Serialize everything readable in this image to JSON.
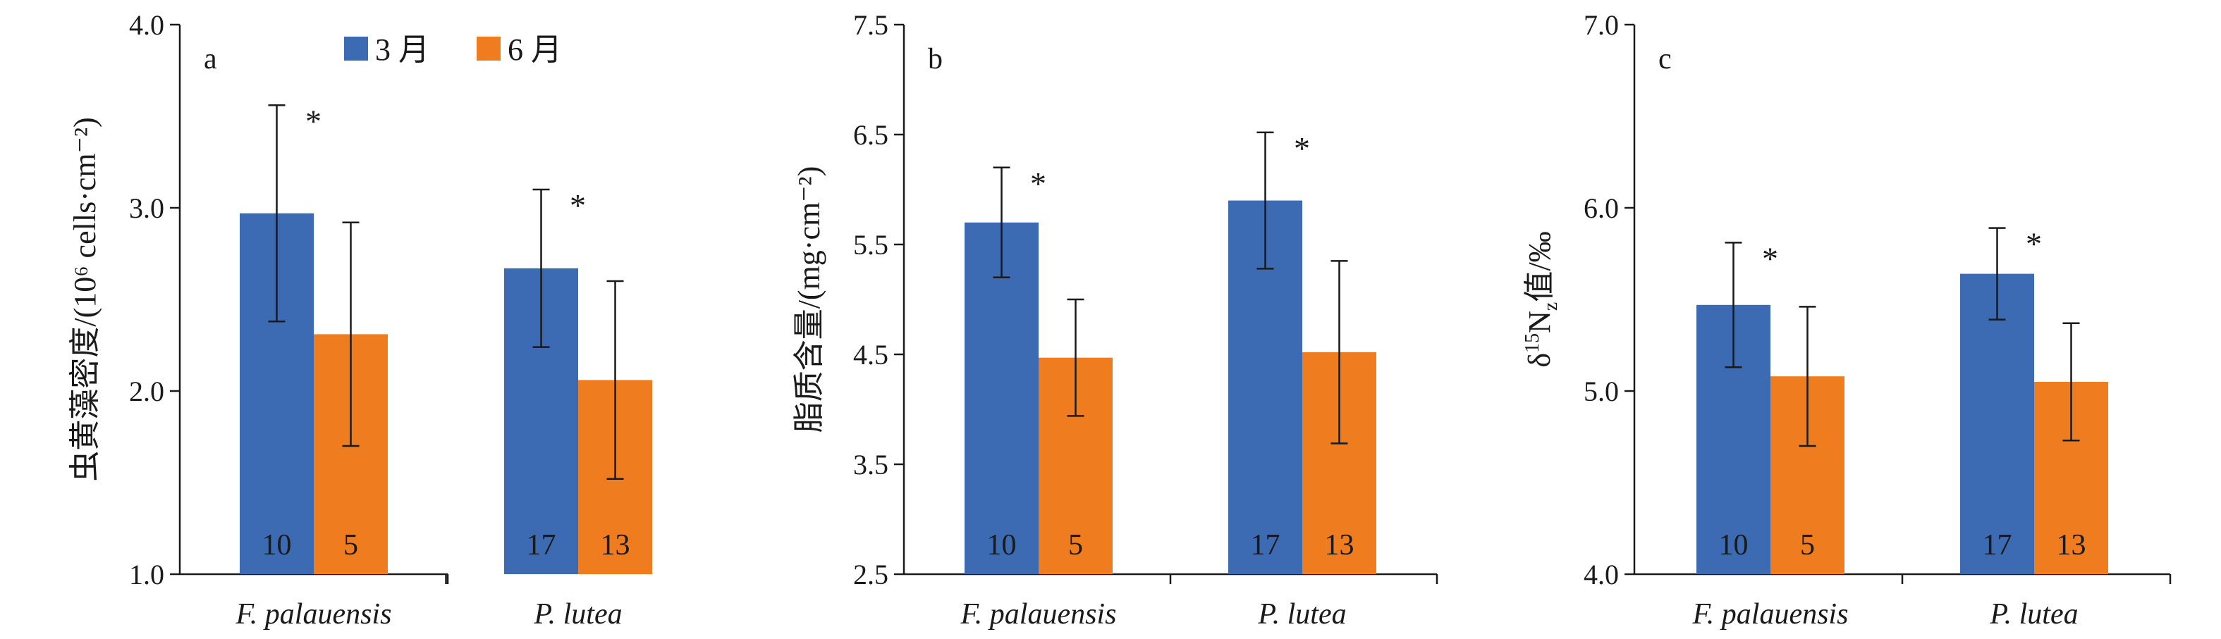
{
  "legend": [
    {
      "label": "3 月",
      "color": "#3c6ab3"
    },
    {
      "label": "6 月",
      "color": "#ef7d1f"
    }
  ],
  "chart_data": [
    {
      "type": "bar",
      "panel_label": "a",
      "ylabel": "虫黄藻密度/(10⁶ cells·cm⁻²)",
      "ylim": [
        1.0,
        4.0
      ],
      "yticks": [
        "1.0",
        "2.0",
        "3.0",
        "4.0"
      ],
      "categories": [
        "F. palauensis",
        "P. lutea"
      ],
      "series": [
        {
          "name": "3 月",
          "values": [
            2.97,
            2.67
          ],
          "errors": [
            0.59,
            0.43
          ],
          "n": [
            "10",
            "17"
          ]
        },
        {
          "name": "6 月",
          "values": [
            2.31,
            2.06
          ],
          "errors": [
            0.61,
            0.54
          ],
          "n": [
            "5",
            "13"
          ]
        }
      ],
      "significance": [
        "*",
        "*"
      ]
    },
    {
      "type": "bar",
      "panel_label": "b",
      "ylabel": "脂质含量/(mg·cm⁻²)",
      "ylim": [
        2.5,
        7.5
      ],
      "yticks": [
        "2.5",
        "3.5",
        "4.5",
        "5.5",
        "6.5",
        "7.5"
      ],
      "categories": [
        "F. palauensis",
        "P. lutea"
      ],
      "series": [
        {
          "name": "3 月",
          "values": [
            5.7,
            5.9
          ],
          "errors": [
            0.5,
            0.62
          ],
          "n": [
            "10",
            "17"
          ]
        },
        {
          "name": "6 月",
          "values": [
            4.47,
            4.52
          ],
          "errors": [
            0.53,
            0.83
          ],
          "n": [
            "5",
            "13"
          ]
        }
      ],
      "significance": [
        "*",
        "*"
      ]
    },
    {
      "type": "bar",
      "panel_label": "c",
      "ylabel": "δ¹⁵N_z值/‰",
      "ylabel_parts": [
        "δ",
        "15",
        "N",
        "z",
        "值/‰"
      ],
      "ylim": [
        4.0,
        7.0
      ],
      "yticks": [
        "4.0",
        "5.0",
        "6.0",
        "7.0"
      ],
      "categories": [
        "F. palauensis",
        "P. lutea"
      ],
      "series": [
        {
          "name": "3 月",
          "values": [
            5.47,
            5.64
          ],
          "errors": [
            0.34,
            0.25
          ],
          "n": [
            "10",
            "17"
          ]
        },
        {
          "name": "6 月",
          "values": [
            5.08,
            5.05
          ],
          "errors": [
            0.38,
            0.32
          ],
          "n": [
            "5",
            "13"
          ]
        }
      ],
      "significance": [
        "*",
        "*"
      ]
    }
  ]
}
